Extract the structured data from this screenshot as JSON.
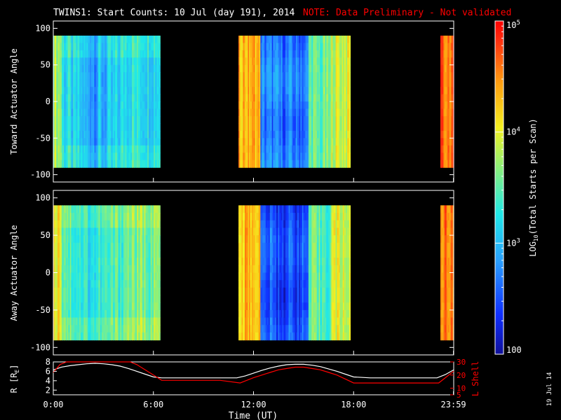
{
  "title": {
    "main": "TWINS1: Start Counts: 10 Jul (day 191), 2014",
    "note": "NOTE: Data Preliminary - Not validated",
    "main_color": "#ffffff",
    "note_color": "#ff0000"
  },
  "stamp": "19 Jul 14",
  "colors": {
    "background": "#000000",
    "axis": "#ffffff",
    "lshell": "#ff0000",
    "radius": "#ffffff"
  },
  "chart_data": [
    {
      "type": "heatmap",
      "panel": "toward",
      "ylabel": "Toward Actuator Angle",
      "xlabel": "",
      "xlim": [
        0,
        24
      ],
      "ylim": [
        -110,
        110
      ],
      "y_ticks": [
        100,
        50,
        0,
        -50,
        -100
      ],
      "y_tick_labels": [
        "100",
        "50",
        "0",
        "-50",
        "-100"
      ],
      "data_range_y": [
        -90,
        90
      ],
      "coverage_hours": [
        [
          0.0,
          6.4
        ],
        [
          11.1,
          17.8
        ],
        [
          23.2,
          24.0
        ]
      ],
      "colormap": "rainbow",
      "color_log_range": [
        2,
        5
      ]
    },
    {
      "type": "heatmap",
      "panel": "away",
      "ylabel": "Away Actuator Angle",
      "xlabel": "",
      "xlim": [
        0,
        24
      ],
      "ylim": [
        -110,
        110
      ],
      "y_ticks": [
        100,
        50,
        0,
        -50,
        -100
      ],
      "y_tick_labels": [
        "100",
        "50",
        "0",
        "-50",
        "-100"
      ],
      "data_range_y": [
        -90,
        90
      ],
      "coverage_hours": [
        [
          0.0,
          6.4
        ],
        [
          11.1,
          17.8
        ],
        [
          23.2,
          24.0
        ]
      ],
      "colormap": "rainbow",
      "color_log_range": [
        2,
        5
      ]
    },
    {
      "type": "line",
      "panel": "orbit",
      "ylabel": "R [R",
      "ylabel_sub": "E",
      "ylabel_end": "]",
      "y2label": "L Shell",
      "xlabel": "Time (UT)",
      "x_tick_labels": [
        "0:00",
        "6:00",
        "12:00",
        "18:00",
        "23:59"
      ],
      "x_tick_values": [
        0,
        6,
        12,
        18,
        23.983
      ],
      "xlim": [
        0,
        24
      ],
      "ylim": [
        1,
        8
      ],
      "y_ticks": [
        2,
        4,
        6,
        8
      ],
      "y2lim": [
        5,
        30
      ],
      "y2_ticks": [
        5,
        10,
        20,
        30
      ],
      "series": [
        {
          "name": "R",
          "x": [
            0,
            0.5,
            1,
            1.5,
            2,
            2.5,
            3,
            3.5,
            4,
            4.5,
            5,
            5.5,
            6,
            6.5,
            7,
            7.5,
            8,
            9,
            10,
            11,
            11.5,
            12,
            12.5,
            13,
            13.5,
            14,
            14.5,
            15,
            15.5,
            16,
            16.5,
            17,
            17.5,
            18,
            19,
            20,
            21,
            22,
            23,
            23.5,
            24
          ],
          "values": [
            6.3,
            6.9,
            7.2,
            7.4,
            7.6,
            7.7,
            7.6,
            7.4,
            7.1,
            6.6,
            6.0,
            5.4,
            4.8,
            4.6,
            4.6,
            4.6,
            4.6,
            4.6,
            4.6,
            4.6,
            5.0,
            5.6,
            6.2,
            6.7,
            7.1,
            7.4,
            7.5,
            7.5,
            7.3,
            7.0,
            6.5,
            6.0,
            5.4,
            4.8,
            4.6,
            4.6,
            4.6,
            4.6,
            4.6,
            5.3,
            6.3
          ]
        },
        {
          "name": "L Shell",
          "axis": "y2",
          "x": [
            0,
            0.4,
            0.8,
            4.6,
            5.0,
            5.5,
            6.0,
            6.5,
            8,
            10,
            11.2,
            11.6,
            12.0,
            12.5,
            13.0,
            13.5,
            14.0,
            14.5,
            15.0,
            15.5,
            16.0,
            16.5,
            17.0,
            17.5,
            18.0,
            19,
            21,
            23.1,
            23.5,
            24
          ],
          "values": [
            22,
            28,
            31,
            31,
            28,
            24,
            20,
            16,
            16,
            16,
            14,
            16,
            18,
            20,
            22,
            24,
            25,
            26,
            26,
            25,
            24,
            22,
            20,
            17,
            14,
            14,
            14,
            14,
            18,
            23
          ]
        }
      ]
    },
    {
      "type": "colorbar",
      "label": "LOG",
      "label_sub": "10",
      "label_end": "(Total Starts per Scan)",
      "scale": "log",
      "range": [
        100,
        100000
      ],
      "tick_labels": [
        {
          "value": 100000,
          "base": "10",
          "exp": "5"
        },
        {
          "value": 10000,
          "base": "10",
          "exp": "4"
        },
        {
          "value": 1000,
          "base": "10",
          "exp": "3"
        },
        {
          "value": 100,
          "base": "100",
          "exp": ""
        }
      ]
    }
  ]
}
